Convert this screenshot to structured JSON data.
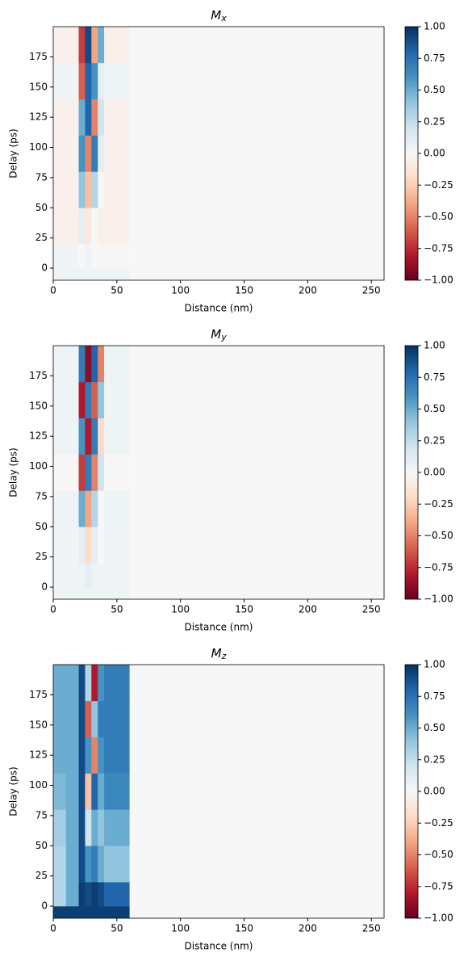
{
  "chart_data": [
    {
      "type": "heatmap",
      "title": "M",
      "title_subscript": "x",
      "xlabel": "Distance (nm)",
      "ylabel": "Delay (ps)",
      "xbins": [
        0,
        10,
        20,
        25,
        30,
        35,
        40,
        60,
        260
      ],
      "ybins": [
        -10,
        0,
        20,
        50,
        80,
        110,
        140,
        170,
        200
      ],
      "z": [
        [
          0.05,
          0.05,
          0.05,
          0.05,
          0.05,
          0.05,
          0.05,
          0
        ],
        [
          0.05,
          0.03,
          0,
          0.05,
          0,
          0,
          0,
          0
        ],
        [
          -0.05,
          -0.05,
          0.1,
          -0.1,
          0,
          -0.05,
          -0.05,
          0
        ],
        [
          -0.05,
          -0.05,
          0.4,
          -0.3,
          0.3,
          0,
          -0.05,
          0
        ],
        [
          -0.05,
          -0.05,
          0.6,
          -0.5,
          0.7,
          0.1,
          -0.05,
          0
        ],
        [
          -0.05,
          -0.05,
          0.5,
          0.8,
          -0.5,
          0.2,
          -0.05,
          0
        ],
        [
          0.05,
          0.05,
          -0.6,
          0.8,
          0.6,
          0.1,
          0.05,
          0
        ],
        [
          -0.05,
          -0.05,
          -0.7,
          0.9,
          -0.4,
          0.5,
          -0.05,
          0
        ]
      ],
      "xlim": [
        0,
        260
      ],
      "ylim": [
        -10,
        200
      ],
      "xticks": [
        0,
        50,
        100,
        150,
        200,
        250
      ],
      "yticks": [
        0,
        25,
        50,
        75,
        100,
        125,
        150,
        175
      ],
      "clim": [
        -1,
        1
      ],
      "colors": [
        "#67001f",
        "#b2182b",
        "#d6604d",
        "#f4a582",
        "#fddbc7",
        "#f7f7f7",
        "#d1e5f0",
        "#92c5de",
        "#4393c3",
        "#2166ac",
        "#053061"
      ],
      "cticks": [
        {
          "value": -1,
          "label": "−1.00"
        },
        {
          "value": -0.75,
          "label": "−0.75"
        },
        {
          "value": -0.5,
          "label": "−0.50"
        },
        {
          "value": -0.25,
          "label": "−0.25"
        },
        {
          "value": 0,
          "label": "0.00"
        },
        {
          "value": 0.25,
          "label": "0.25"
        },
        {
          "value": 0.5,
          "label": "0.50"
        },
        {
          "value": 0.75,
          "label": "0.75"
        },
        {
          "value": 1,
          "label": "1.00"
        }
      ]
    },
    {
      "type": "heatmap",
      "title": "M",
      "title_subscript": "y",
      "xlabel": "Distance (nm)",
      "ylabel": "Delay (ps)",
      "xbins": [
        0,
        10,
        20,
        25,
        30,
        35,
        40,
        60,
        260
      ],
      "ybins": [
        -10,
        0,
        20,
        50,
        80,
        110,
        140,
        170,
        200
      ],
      "z": [
        [
          0.05,
          0.05,
          0.05,
          0.05,
          0.05,
          0.05,
          0.05,
          0
        ],
        [
          0.03,
          0.03,
          0.05,
          0.1,
          0.05,
          0.03,
          0.03,
          0
        ],
        [
          0.03,
          0.03,
          0.1,
          -0.2,
          0.1,
          0,
          0.03,
          0
        ],
        [
          0.05,
          0.05,
          0.5,
          -0.4,
          0.3,
          0,
          0.05,
          0
        ],
        [
          0,
          0,
          -0.7,
          0.7,
          -0.5,
          0.2,
          0,
          0
        ],
        [
          0.05,
          0.05,
          0.6,
          -0.8,
          0.7,
          -0.2,
          0.05,
          0
        ],
        [
          0.05,
          0.05,
          -0.8,
          0.7,
          -0.6,
          0.4,
          0.05,
          0
        ],
        [
          0.05,
          0.05,
          0.7,
          -0.9,
          0.8,
          -0.5,
          0.05,
          0
        ]
      ],
      "xlim": [
        0,
        260
      ],
      "ylim": [
        -10,
        200
      ],
      "xticks": [
        0,
        50,
        100,
        150,
        200,
        250
      ],
      "yticks": [
        0,
        25,
        50,
        75,
        100,
        125,
        150,
        175
      ],
      "clim": [
        -1,
        1
      ],
      "colors": [
        "#67001f",
        "#b2182b",
        "#d6604d",
        "#f4a582",
        "#fddbc7",
        "#f7f7f7",
        "#d1e5f0",
        "#92c5de",
        "#4393c3",
        "#2166ac",
        "#053061"
      ],
      "cticks": [
        {
          "value": -1,
          "label": "−1.00"
        },
        {
          "value": -0.75,
          "label": "−0.75"
        },
        {
          "value": -0.5,
          "label": "−0.50"
        },
        {
          "value": -0.25,
          "label": "−0.25"
        },
        {
          "value": 0,
          "label": "0.00"
        },
        {
          "value": 0.25,
          "label": "0.25"
        },
        {
          "value": 0.5,
          "label": "0.50"
        },
        {
          "value": 0.75,
          "label": "0.75"
        },
        {
          "value": 1,
          "label": "1.00"
        }
      ]
    },
    {
      "type": "heatmap",
      "title": "M",
      "title_subscript": "z",
      "xlabel": "Distance (nm)",
      "ylabel": "Delay (ps)",
      "xbins": [
        0,
        10,
        20,
        25,
        30,
        35,
        40,
        60,
        260
      ],
      "ybins": [
        -10,
        0,
        20,
        50,
        80,
        110,
        140,
        170,
        200
      ],
      "z": [
        [
          0.95,
          0.95,
          0.95,
          0.95,
          0.95,
          0.95,
          0.95,
          0
        ],
        [
          0.3,
          0.5,
          0.95,
          0.9,
          0.95,
          0.9,
          0.8,
          0
        ],
        [
          0.3,
          0.5,
          0.9,
          0.6,
          0.7,
          0.5,
          0.4,
          0
        ],
        [
          0.35,
          0.5,
          0.9,
          0.2,
          0.5,
          0.4,
          0.5,
          0
        ],
        [
          0.45,
          0.5,
          0.9,
          -0.3,
          0.8,
          0.5,
          0.65,
          0
        ],
        [
          0.5,
          0.5,
          0.9,
          0.6,
          -0.5,
          0.6,
          0.7,
          0
        ],
        [
          0.5,
          0.5,
          0.9,
          -0.6,
          0.4,
          0.7,
          0.7,
          0
        ],
        [
          0.5,
          0.5,
          0.9,
          0.3,
          -0.8,
          0.6,
          0.7,
          0
        ]
      ],
      "xlim": [
        0,
        260
      ],
      "ylim": [
        -10,
        200
      ],
      "xticks": [
        0,
        50,
        100,
        150,
        200,
        250
      ],
      "yticks": [
        0,
        25,
        50,
        75,
        100,
        125,
        150,
        175
      ],
      "clim": [
        -1,
        1
      ],
      "colors": [
        "#67001f",
        "#b2182b",
        "#d6604d",
        "#f4a582",
        "#fddbc7",
        "#f7f7f7",
        "#d1e5f0",
        "#92c5de",
        "#4393c3",
        "#2166ac",
        "#053061"
      ],
      "cticks": [
        {
          "value": -1,
          "label": "−1.00"
        },
        {
          "value": -0.75,
          "label": "−0.75"
        },
        {
          "value": -0.5,
          "label": "−0.50"
        },
        {
          "value": -0.25,
          "label": "−0.25"
        },
        {
          "value": 0,
          "label": "0.00"
        },
        {
          "value": 0.25,
          "label": "0.25"
        },
        {
          "value": 0.5,
          "label": "0.50"
        },
        {
          "value": 0.75,
          "label": "0.75"
        },
        {
          "value": 1,
          "label": "1.00"
        }
      ]
    }
  ]
}
